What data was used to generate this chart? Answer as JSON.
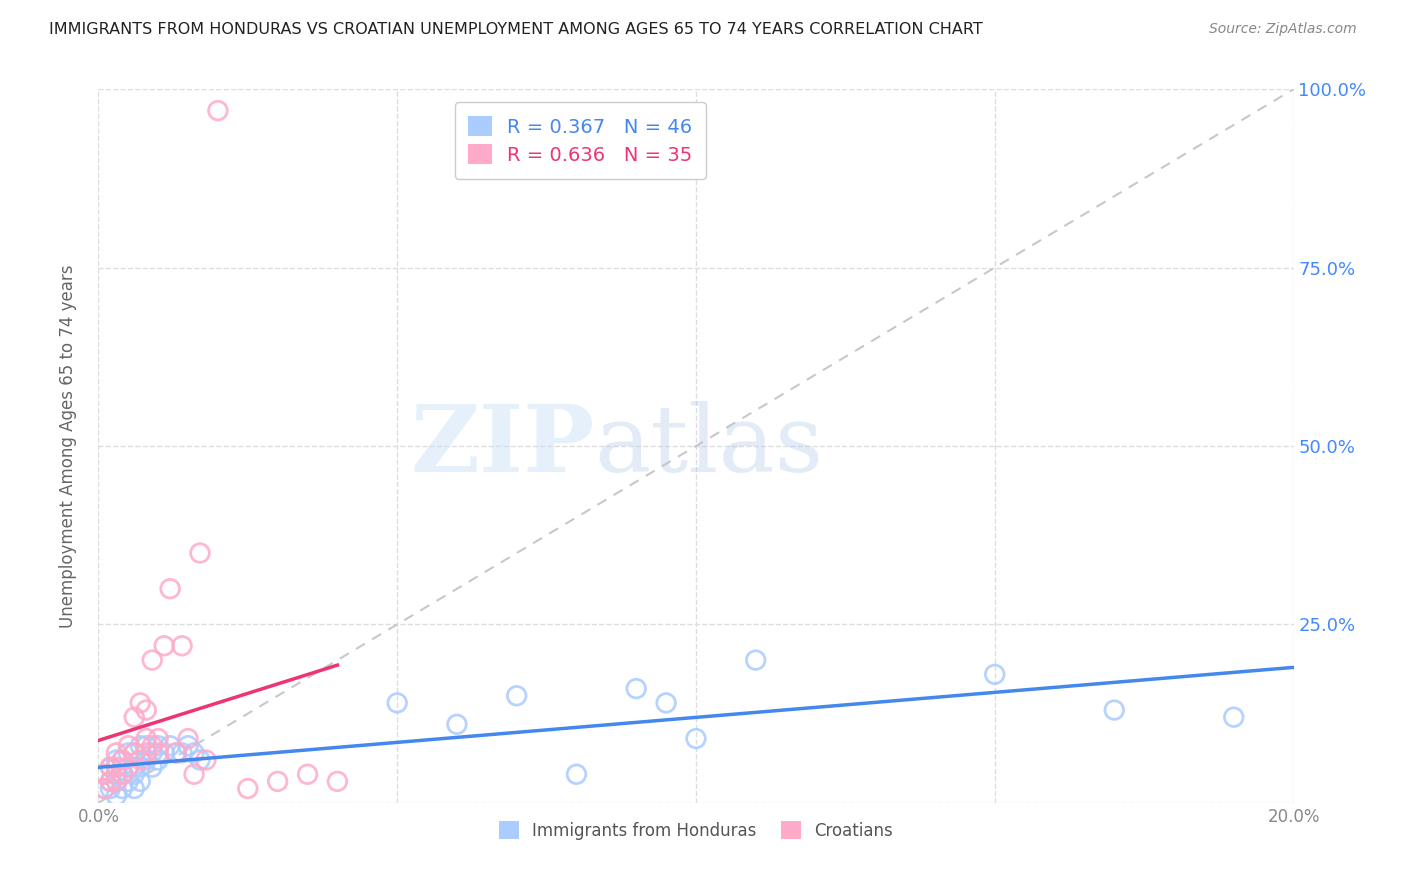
{
  "title": "IMMIGRANTS FROM HONDURAS VS CROATIAN UNEMPLOYMENT AMONG AGES 65 TO 74 YEARS CORRELATION CHART",
  "source": "Source: ZipAtlas.com",
  "ylabel": "Unemployment Among Ages 65 to 74 years",
  "xlim": [
    0.0,
    0.2
  ],
  "ylim": [
    0.0,
    1.0
  ],
  "yticks_right": [
    0.0,
    0.25,
    0.5,
    0.75,
    1.0
  ],
  "series1_name": "Immigrants from Honduras",
  "series1_color": "#aaccff",
  "series1_R": 0.367,
  "series1_N": 46,
  "series2_name": "Croatians",
  "series2_color": "#ffaac8",
  "series2_R": 0.636,
  "series2_N": 35,
  "series1_x": [
    0.001,
    0.001,
    0.002,
    0.002,
    0.002,
    0.003,
    0.003,
    0.003,
    0.003,
    0.004,
    0.004,
    0.004,
    0.005,
    0.005,
    0.005,
    0.006,
    0.006,
    0.006,
    0.006,
    0.007,
    0.007,
    0.007,
    0.008,
    0.008,
    0.009,
    0.009,
    0.01,
    0.01,
    0.011,
    0.012,
    0.013,
    0.014,
    0.015,
    0.016,
    0.017,
    0.05,
    0.06,
    0.07,
    0.08,
    0.09,
    0.095,
    0.1,
    0.11,
    0.15,
    0.17,
    0.19
  ],
  "series1_y": [
    0.02,
    0.04,
    0.02,
    0.03,
    0.05,
    0.01,
    0.03,
    0.04,
    0.06,
    0.02,
    0.04,
    0.06,
    0.03,
    0.05,
    0.07,
    0.02,
    0.04,
    0.05,
    0.07,
    0.03,
    0.05,
    0.08,
    0.06,
    0.08,
    0.05,
    0.07,
    0.06,
    0.08,
    0.07,
    0.08,
    0.07,
    0.07,
    0.08,
    0.07,
    0.06,
    0.14,
    0.11,
    0.15,
    0.04,
    0.16,
    0.14,
    0.09,
    0.2,
    0.18,
    0.13,
    0.12
  ],
  "series2_x": [
    0.001,
    0.001,
    0.002,
    0.002,
    0.003,
    0.003,
    0.003,
    0.004,
    0.004,
    0.005,
    0.005,
    0.006,
    0.006,
    0.007,
    0.007,
    0.008,
    0.008,
    0.008,
    0.009,
    0.009,
    0.01,
    0.01,
    0.011,
    0.012,
    0.013,
    0.014,
    0.015,
    0.016,
    0.017,
    0.018,
    0.02,
    0.025,
    0.03,
    0.035,
    0.04
  ],
  "series2_y": [
    0.02,
    0.04,
    0.03,
    0.05,
    0.03,
    0.05,
    0.07,
    0.04,
    0.06,
    0.05,
    0.08,
    0.07,
    0.12,
    0.06,
    0.14,
    0.07,
    0.09,
    0.13,
    0.08,
    0.2,
    0.07,
    0.09,
    0.22,
    0.3,
    0.07,
    0.22,
    0.09,
    0.04,
    0.35,
    0.06,
    0.97,
    0.02,
    0.03,
    0.04,
    0.03
  ],
  "watermark_zip": "ZIP",
  "watermark_atlas": "atlas",
  "background_color": "#ffffff",
  "grid_color": "#dddddd",
  "title_color": "#222222",
  "axis_label_color": "#666666",
  "right_axis_color": "#4488ff",
  "series1_line_color": "#4488ee",
  "series2_line_color": "#ee3377",
  "diag_line_color": "#c8c8c8",
  "legend_border_color": "#cccccc"
}
